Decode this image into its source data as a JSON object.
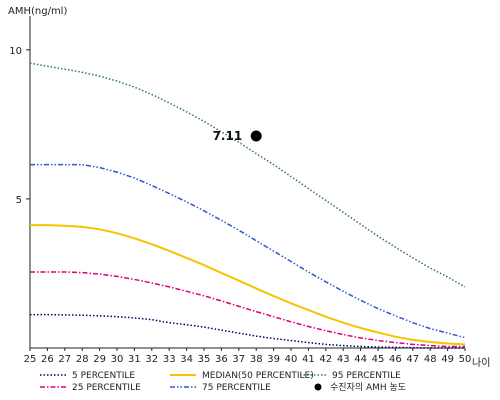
{
  "chart_data": {
    "type": "line",
    "ylabel": "AMH(ng/ml)",
    "xlabel": "나이",
    "xlim": [
      25,
      50
    ],
    "ylim": [
      0,
      11
    ],
    "y_ticks": [
      5,
      10
    ],
    "x": [
      25,
      26,
      27,
      28,
      29,
      30,
      31,
      32,
      33,
      34,
      35,
      36,
      37,
      38,
      39,
      40,
      41,
      42,
      43,
      44,
      45,
      46,
      47,
      48,
      49,
      50
    ],
    "grid": false,
    "legend_position": "bottom",
    "series": [
      {
        "name": "5 PERCENTILE",
        "color": "#000066",
        "dash": "dotted",
        "values": [
          1.12,
          1.12,
          1.11,
          1.1,
          1.08,
          1.05,
          1.01,
          0.95,
          0.85,
          0.78,
          0.7,
          0.6,
          0.5,
          0.4,
          0.32,
          0.25,
          0.18,
          0.12,
          0.08,
          0.05,
          0.03,
          0.02,
          0.01,
          0.0,
          0.0,
          0.0
        ]
      },
      {
        "name": "25 PERCENTILE",
        "color": "#dd0077",
        "dash": "dashdot",
        "values": [
          2.55,
          2.55,
          2.55,
          2.53,
          2.48,
          2.4,
          2.3,
          2.18,
          2.05,
          1.9,
          1.75,
          1.58,
          1.4,
          1.22,
          1.05,
          0.88,
          0.72,
          0.58,
          0.45,
          0.34,
          0.25,
          0.18,
          0.12,
          0.08,
          0.05,
          0.05
        ]
      },
      {
        "name": "MEDIAN(50 PERCENTILE)",
        "color": "#f5c400",
        "dash": "solid",
        "values": [
          4.12,
          4.12,
          4.1,
          4.06,
          3.98,
          3.85,
          3.68,
          3.48,
          3.26,
          3.02,
          2.78,
          2.52,
          2.26,
          2.0,
          1.74,
          1.5,
          1.27,
          1.05,
          0.85,
          0.67,
          0.52,
          0.38,
          0.27,
          0.2,
          0.15,
          0.12
        ]
      },
      {
        "name": "75 PERCENTILE",
        "color": "#3355cc",
        "dash": "dashdotdot",
        "values": [
          6.15,
          6.15,
          6.15,
          6.15,
          6.05,
          5.9,
          5.7,
          5.45,
          5.18,
          4.9,
          4.6,
          4.28,
          3.95,
          3.6,
          3.25,
          2.9,
          2.55,
          2.22,
          1.9,
          1.6,
          1.32,
          1.08,
          0.85,
          0.65,
          0.5,
          0.35
        ]
      },
      {
        "name": "95 PERCENTILE",
        "color": "#2e7d46",
        "dash": "dotted",
        "values": [
          9.55,
          9.45,
          9.35,
          9.25,
          9.12,
          8.95,
          8.75,
          8.5,
          8.22,
          7.92,
          7.6,
          7.25,
          6.9,
          6.52,
          6.15,
          5.75,
          5.35,
          4.95,
          4.55,
          4.15,
          3.75,
          3.38,
          3.02,
          2.68,
          2.38,
          2.05
        ]
      }
    ],
    "point": {
      "name": "수진자의 AMH 농도",
      "x": 38,
      "y": 7.11,
      "label": "7.11",
      "color": "#000000"
    },
    "legend_order": [
      0,
      1,
      2,
      3,
      4,
      "point"
    ]
  }
}
